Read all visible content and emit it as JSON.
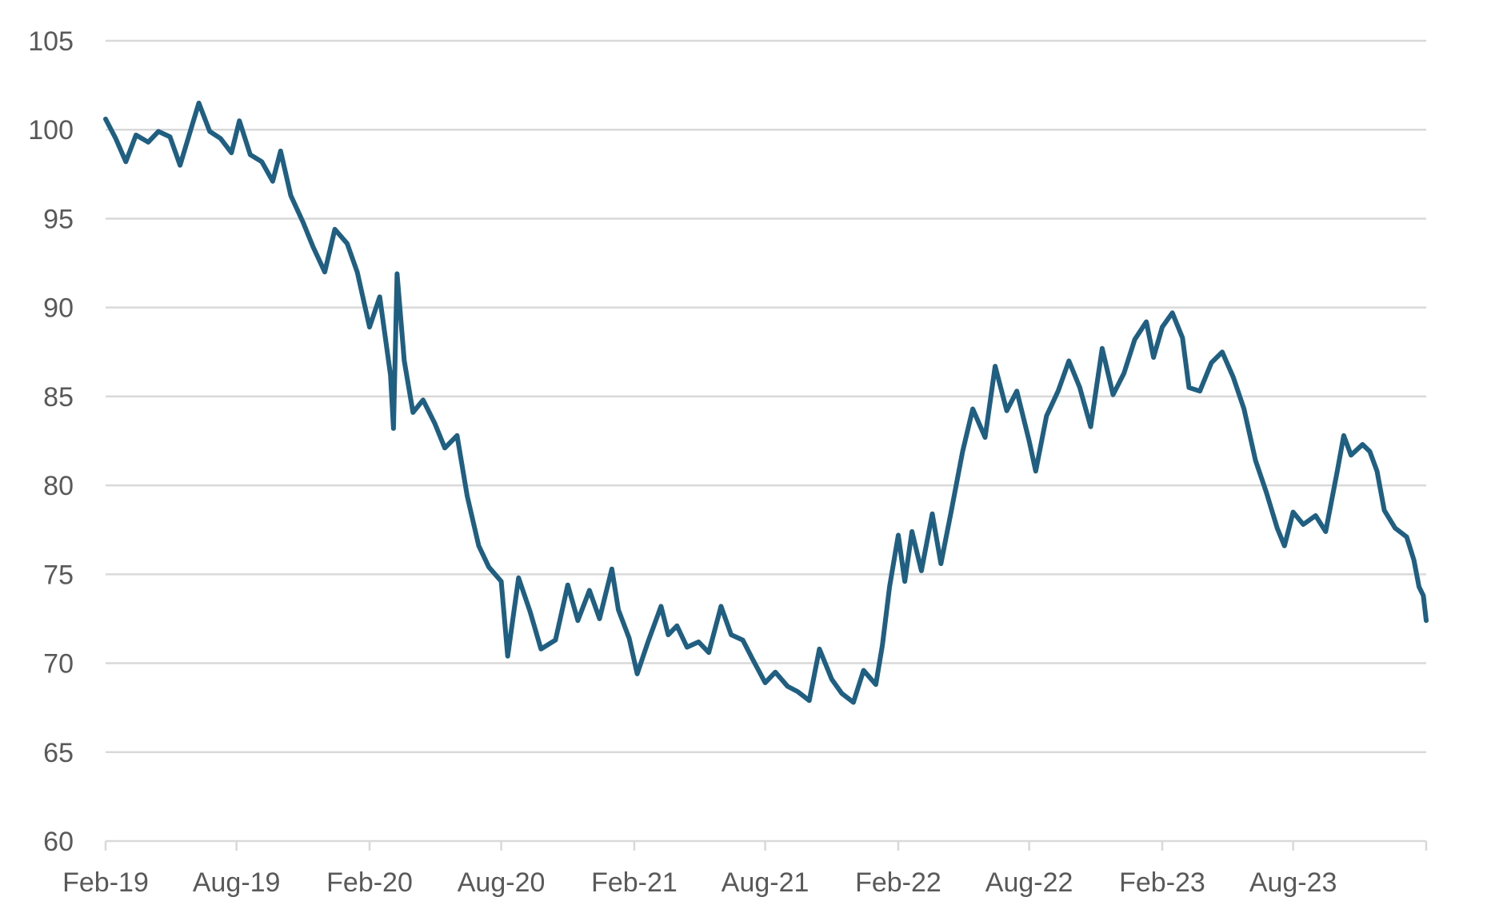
{
  "chart_data": {
    "type": "line",
    "title": "",
    "xlabel": "",
    "ylabel": "",
    "x_ticks": [
      "Feb-19",
      "Aug-19",
      "Feb-20",
      "Aug-20",
      "Feb-21",
      "Aug-21",
      "Feb-22",
      "Aug-22",
      "Feb-23",
      "Aug-23"
    ],
    "y_ticks": [
      "60",
      "65",
      "70",
      "75",
      "80",
      "85",
      "90",
      "95",
      "100",
      "105"
    ],
    "ylim": [
      60,
      105
    ],
    "xlim": [
      "2019-02-01",
      "2024-02-01"
    ],
    "grid": true,
    "legend": "none",
    "series": [
      {
        "color": "#1f5f82",
        "points": [
          [
            "2019-02-01",
            100.6
          ],
          [
            "2019-02-15",
            99.5
          ],
          [
            "2019-03-01",
            98.2
          ],
          [
            "2019-03-15",
            99.7
          ],
          [
            "2019-04-01",
            99.3
          ],
          [
            "2019-04-15",
            99.9
          ],
          [
            "2019-05-01",
            99.6
          ],
          [
            "2019-05-15",
            98.0
          ],
          [
            "2019-06-01",
            100.3
          ],
          [
            "2019-06-10",
            101.5
          ],
          [
            "2019-06-25",
            99.9
          ],
          [
            "2019-07-10",
            99.5
          ],
          [
            "2019-07-25",
            98.7
          ],
          [
            "2019-08-05",
            100.5
          ],
          [
            "2019-08-20",
            98.6
          ],
          [
            "2019-09-05",
            98.2
          ],
          [
            "2019-09-20",
            97.1
          ],
          [
            "2019-10-01",
            98.8
          ],
          [
            "2019-10-15",
            96.3
          ],
          [
            "2019-11-01",
            94.8
          ],
          [
            "2019-11-15",
            93.4
          ],
          [
            "2019-12-01",
            92.0
          ],
          [
            "2019-12-15",
            94.4
          ],
          [
            "2020-01-01",
            93.6
          ],
          [
            "2020-01-15",
            92.0
          ],
          [
            "2020-02-01",
            88.9
          ],
          [
            "2020-02-15",
            90.6
          ],
          [
            "2020-03-01",
            86.2
          ],
          [
            "2020-03-05",
            83.2
          ],
          [
            "2020-03-10",
            91.9
          ],
          [
            "2020-03-20",
            87.0
          ],
          [
            "2020-04-01",
            84.1
          ],
          [
            "2020-04-15",
            84.8
          ],
          [
            "2020-05-01",
            83.5
          ],
          [
            "2020-05-15",
            82.1
          ],
          [
            "2020-06-01",
            82.8
          ],
          [
            "2020-06-15",
            79.4
          ],
          [
            "2020-07-01",
            76.6
          ],
          [
            "2020-07-15",
            75.4
          ],
          [
            "2020-08-01",
            74.6
          ],
          [
            "2020-08-10",
            70.4
          ],
          [
            "2020-08-25",
            74.8
          ],
          [
            "2020-09-10",
            72.9
          ],
          [
            "2020-09-25",
            70.8
          ],
          [
            "2020-10-15",
            71.3
          ],
          [
            "2020-11-01",
            74.4
          ],
          [
            "2020-11-15",
            72.4
          ],
          [
            "2020-12-01",
            74.1
          ],
          [
            "2020-12-15",
            72.5
          ],
          [
            "2021-01-01",
            75.3
          ],
          [
            "2021-01-10",
            73.0
          ],
          [
            "2021-01-25",
            71.4
          ],
          [
            "2021-02-05",
            69.4
          ],
          [
            "2021-02-20",
            71.2
          ],
          [
            "2021-03-10",
            73.2
          ],
          [
            "2021-03-20",
            71.6
          ],
          [
            "2021-04-01",
            72.1
          ],
          [
            "2021-04-15",
            70.9
          ],
          [
            "2021-05-01",
            71.2
          ],
          [
            "2021-05-15",
            70.6
          ],
          [
            "2021-06-01",
            73.2
          ],
          [
            "2021-06-15",
            71.6
          ],
          [
            "2021-07-01",
            71.3
          ],
          [
            "2021-07-15",
            70.2
          ],
          [
            "2021-08-01",
            68.9
          ],
          [
            "2021-08-15",
            69.5
          ],
          [
            "2021-09-01",
            68.7
          ],
          [
            "2021-09-15",
            68.4
          ],
          [
            "2021-10-01",
            67.9
          ],
          [
            "2021-10-15",
            70.8
          ],
          [
            "2021-11-01",
            69.1
          ],
          [
            "2021-11-15",
            68.3
          ],
          [
            "2021-12-01",
            67.8
          ],
          [
            "2021-12-15",
            69.6
          ],
          [
            "2022-01-01",
            68.8
          ],
          [
            "2022-01-10",
            71.0
          ],
          [
            "2022-01-20",
            74.3
          ],
          [
            "2022-02-01",
            77.2
          ],
          [
            "2022-02-10",
            74.6
          ],
          [
            "2022-02-20",
            77.4
          ],
          [
            "2022-03-05",
            75.2
          ],
          [
            "2022-03-20",
            78.4
          ],
          [
            "2022-04-01",
            75.6
          ],
          [
            "2022-04-15",
            78.5
          ],
          [
            "2022-05-01",
            81.9
          ],
          [
            "2022-05-15",
            84.3
          ],
          [
            "2022-06-01",
            82.7
          ],
          [
            "2022-06-15",
            86.7
          ],
          [
            "2022-07-01",
            84.2
          ],
          [
            "2022-07-15",
            85.3
          ],
          [
            "2022-08-01",
            82.5
          ],
          [
            "2022-08-10",
            80.8
          ],
          [
            "2022-08-25",
            83.9
          ],
          [
            "2022-09-10",
            85.3
          ],
          [
            "2022-09-25",
            87.0
          ],
          [
            "2022-10-10",
            85.5
          ],
          [
            "2022-10-25",
            83.3
          ],
          [
            "2022-11-10",
            87.7
          ],
          [
            "2022-11-25",
            85.1
          ],
          [
            "2022-12-10",
            86.3
          ],
          [
            "2022-12-25",
            88.2
          ],
          [
            "2023-01-10",
            89.2
          ],
          [
            "2023-01-20",
            87.2
          ],
          [
            "2023-02-01",
            88.9
          ],
          [
            "2023-02-15",
            89.7
          ],
          [
            "2023-03-01",
            88.3
          ],
          [
            "2023-03-10",
            85.5
          ],
          [
            "2023-03-25",
            85.3
          ],
          [
            "2023-04-10",
            86.9
          ],
          [
            "2023-04-25",
            87.5
          ],
          [
            "2023-05-10",
            86.1
          ],
          [
            "2023-05-25",
            84.3
          ],
          [
            "2023-06-10",
            81.4
          ],
          [
            "2023-06-25",
            79.6
          ],
          [
            "2023-07-10",
            77.6
          ],
          [
            "2023-07-20",
            76.6
          ],
          [
            "2023-08-01",
            78.5
          ],
          [
            "2023-08-15",
            77.8
          ],
          [
            "2023-09-01",
            78.3
          ],
          [
            "2023-09-15",
            77.4
          ],
          [
            "2023-10-01",
            80.8
          ],
          [
            "2023-10-10",
            82.8
          ],
          [
            "2023-10-20",
            81.7
          ],
          [
            "2023-11-05",
            82.3
          ],
          [
            "2023-11-15",
            81.9
          ],
          [
            "2023-11-25",
            80.8
          ],
          [
            "2023-12-05",
            78.6
          ],
          [
            "2023-12-20",
            77.6
          ],
          [
            "2024-01-05",
            77.1
          ],
          [
            "2024-01-15",
            75.8
          ],
          [
            "2024-01-22",
            74.3
          ],
          [
            "2024-01-28",
            73.8
          ],
          [
            "2024-02-01",
            72.4
          ]
        ]
      }
    ]
  }
}
